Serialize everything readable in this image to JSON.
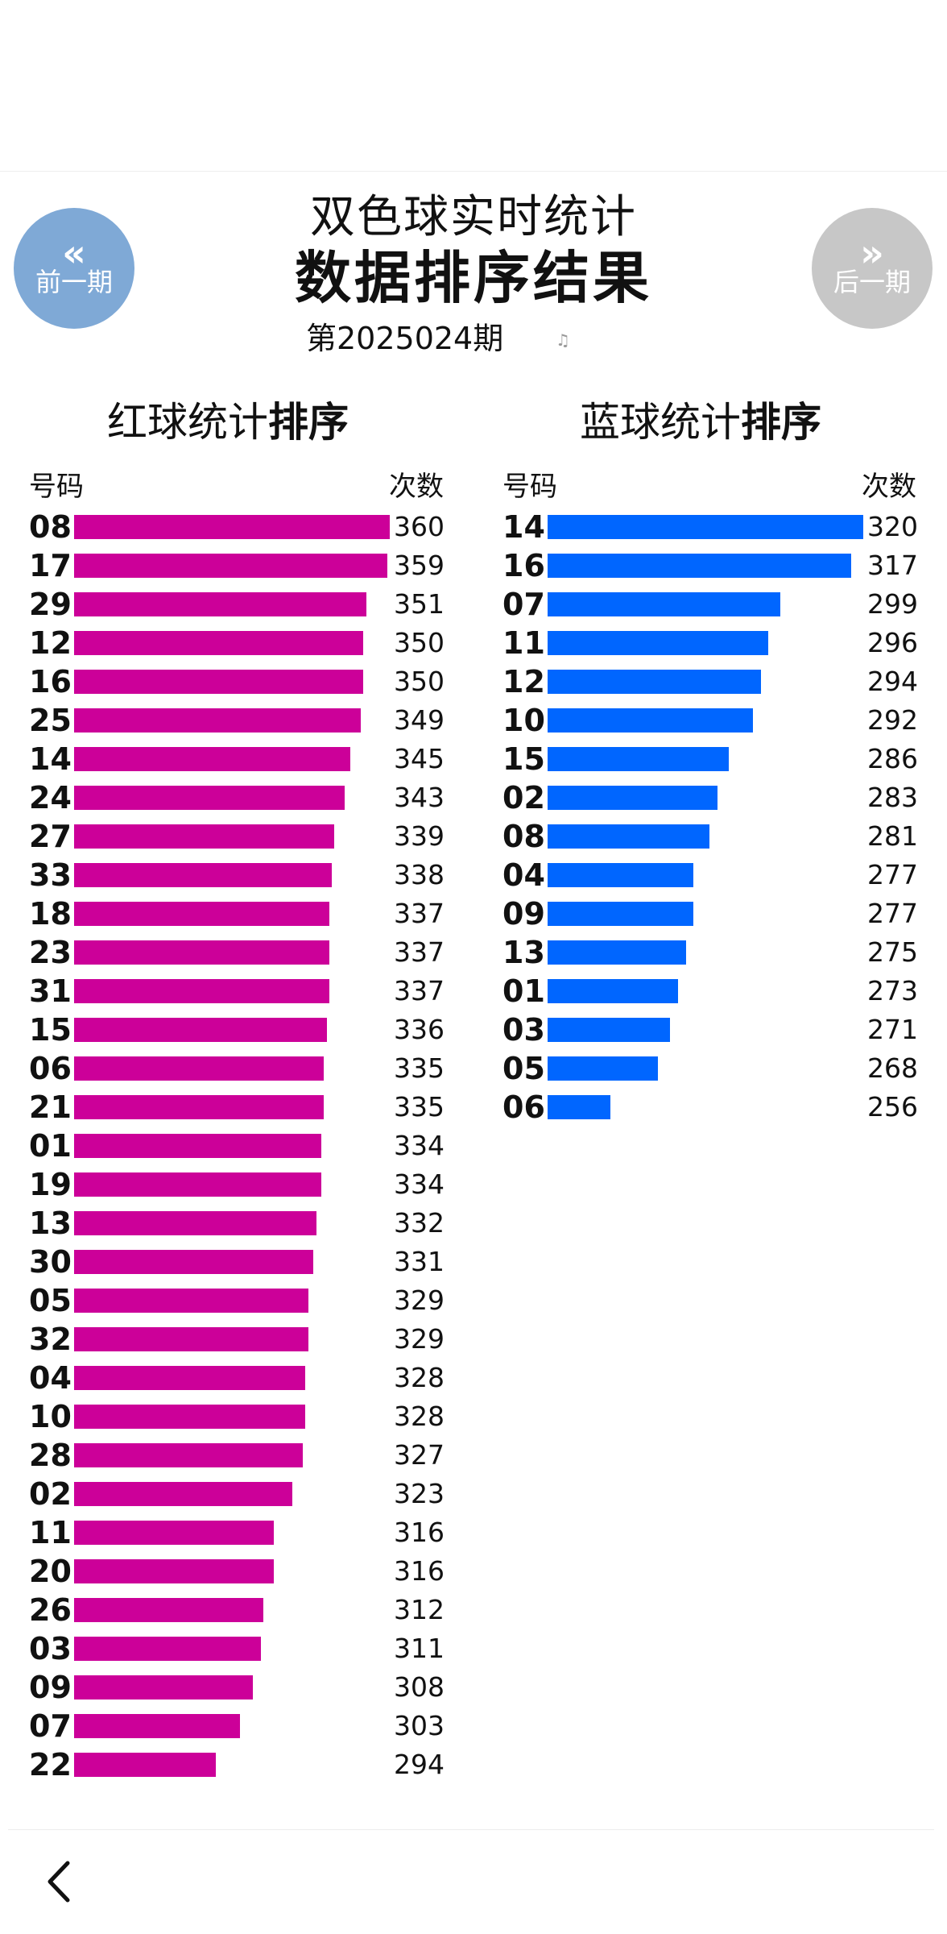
{
  "header": {
    "prev_label": "前一期",
    "next_label": "后一期",
    "prev_icon": "double-chevron-left-icon",
    "next_icon": "double-chevron-right-icon",
    "title_line1": "双色球实时统计",
    "title_line2": "数据排序结果",
    "issue": "第2025024期"
  },
  "red": {
    "title_normal": "红球统计",
    "title_bold": "排序",
    "col_number": "号码",
    "col_count": "次数",
    "color": "#cc0099",
    "axis_max": 360
  },
  "blue": {
    "title_normal": "蓝球统计",
    "title_bold": "排序",
    "col_number": "号码",
    "col_count": "次数",
    "color": "#0066ff",
    "axis_max": 320
  },
  "footer": {
    "back_icon": "chevron-left-icon"
  },
  "chart_data": [
    {
      "type": "bar",
      "orientation": "horizontal",
      "title": "红球统计排序",
      "xlabel": "次数",
      "ylabel": "号码",
      "categories": [
        "08",
        "17",
        "29",
        "12",
        "16",
        "25",
        "14",
        "24",
        "27",
        "33",
        "18",
        "23",
        "31",
        "15",
        "06",
        "21",
        "01",
        "19",
        "13",
        "30",
        "05",
        "32",
        "04",
        "10",
        "28",
        "02",
        "11",
        "20",
        "26",
        "03",
        "09",
        "07",
        "22"
      ],
      "values": [
        360,
        359,
        351,
        350,
        350,
        349,
        345,
        343,
        339,
        338,
        337,
        337,
        337,
        336,
        335,
        335,
        334,
        334,
        332,
        331,
        329,
        329,
        328,
        328,
        327,
        323,
        316,
        316,
        312,
        311,
        308,
        303,
        294
      ],
      "color": "#cc0099"
    },
    {
      "type": "bar",
      "orientation": "horizontal",
      "title": "蓝球统计排序",
      "xlabel": "次数",
      "ylabel": "号码",
      "categories": [
        "14",
        "16",
        "07",
        "11",
        "12",
        "10",
        "15",
        "02",
        "08",
        "04",
        "09",
        "13",
        "01",
        "03",
        "05",
        "06"
      ],
      "values": [
        320,
        317,
        299,
        296,
        294,
        292,
        286,
        283,
        281,
        277,
        277,
        275,
        273,
        271,
        268,
        256
      ],
      "color": "#0066ff"
    }
  ]
}
